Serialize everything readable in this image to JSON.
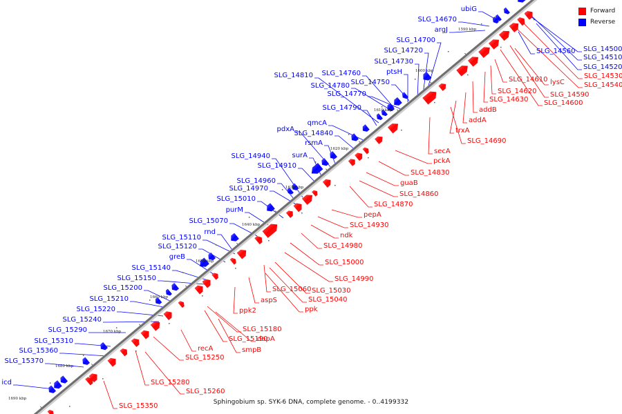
{
  "legend": {
    "forward": {
      "label": "Forward",
      "color": "#ff0000"
    },
    "reverse": {
      "label": "Reverse",
      "color": "#0000ff"
    }
  },
  "caption": "Sphingobium sp. SYK-6 DNA, complete genome. - 0..4199332",
  "ticks": [
    "1590 kbp",
    "1600 kbp",
    "1610 kbp",
    "1620 kbp",
    "1630 kbp",
    "1640 kbp",
    "1650 kbp",
    "1660 kbp",
    "1670 kbp",
    "1680 kbp",
    "1690 kbp"
  ],
  "reverse_genes": [
    "ubiG",
    "SLG_14670",
    "argJ",
    "SLG_14700",
    "SLG_14720",
    "SLG_14730",
    "ptsH",
    "SLG_14810",
    "SLG_14760",
    "SLG_14780",
    "SLG_14750",
    "SLG_14770",
    "SLG_14790",
    "qmcA",
    "pdxA",
    "SLG_14840",
    "rsmA",
    "surA",
    "SLG_14940",
    "SLG_14910",
    "SLG_14960",
    "SLG_14970",
    "SLG_15010",
    "purM",
    "SLG_15070",
    "rnd",
    "SLG_15110",
    "SLG_15120",
    "greB",
    "SLG_15140",
    "SLG_15150",
    "SLG_15200",
    "SLG_15210",
    "SLG_15220",
    "SLG_15240",
    "SLG_15290",
    "SLG_15310",
    "SLG_15360",
    "SLG_15370",
    "icd",
    "SLG_14500",
    "SLG_14510",
    "SLG_14520",
    "SLG_14560"
  ],
  "forward_genes": [
    "SLG_14530",
    "SLG_14540",
    "SLG_14590",
    "SLG_14600",
    "lysC",
    "SLG_14610",
    "SLG_14620",
    "SLG_14630",
    "addB",
    "addA",
    "trxA",
    "SLG_14690",
    "secA",
    "pckA",
    "SLG_14830",
    "guaB",
    "SLG_14860",
    "SLG_14870",
    "pepA",
    "SLG_14930",
    "ndk",
    "SLG_14980",
    "SLG_15000",
    "SLG_14990",
    "SLG_15060",
    "SLG_15030",
    "SLG_15040",
    "aspS",
    "ppk2",
    "ppk",
    "SLG_15180",
    "SLG_15190",
    "dapA",
    "smpB",
    "recA",
    "SLG_15250",
    "SLG_15280",
    "SLG_15260",
    "SLG_15350"
  ]
}
